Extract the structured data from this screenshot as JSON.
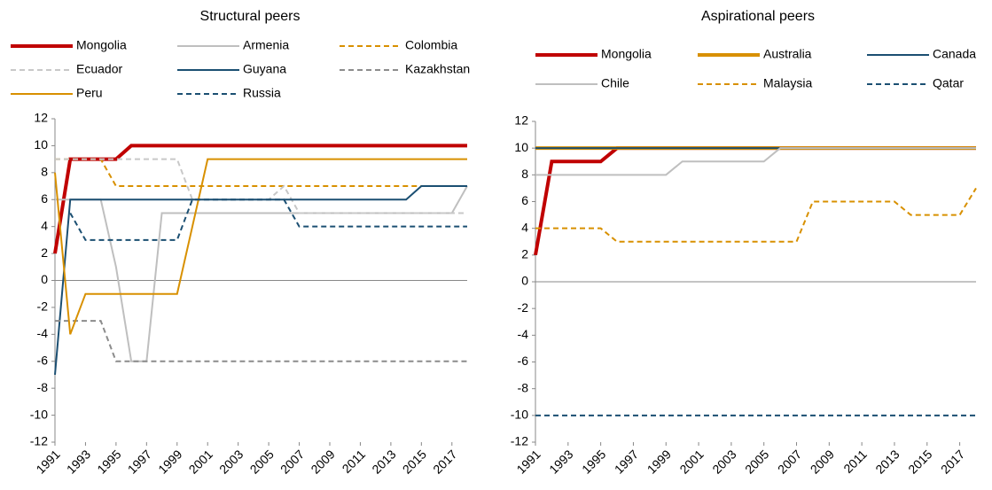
{
  "chart_data": [
    {
      "type": "line",
      "title": "Structural peers",
      "x": [
        1991,
        1992,
        1993,
        1994,
        1995,
        1996,
        1997,
        1998,
        1999,
        2000,
        2001,
        2002,
        2003,
        2004,
        2005,
        2006,
        2007,
        2008,
        2009,
        2010,
        2011,
        2012,
        2013,
        2014,
        2015,
        2016,
        2017,
        2018
      ],
      "xlim": [
        1991,
        2018
      ],
      "xticks": [
        1991,
        1993,
        1995,
        1997,
        1999,
        2001,
        2003,
        2005,
        2007,
        2009,
        2011,
        2013,
        2015,
        2017
      ],
      "ylim": [
        -12,
        12
      ],
      "yticks": [
        -12,
        -10,
        -8,
        -6,
        -4,
        -2,
        0,
        2,
        4,
        6,
        8,
        10,
        12
      ],
      "series": [
        {
          "name": "Mongolia",
          "color": "#c00000",
          "dashed": false,
          "width": 4,
          "values": [
            2,
            9,
            9,
            9,
            9,
            10,
            10,
            10,
            10,
            10,
            10,
            10,
            10,
            10,
            10,
            10,
            10,
            10,
            10,
            10,
            10,
            10,
            10,
            10,
            10,
            10,
            10,
            10
          ]
        },
        {
          "name": "Armenia",
          "color": "#bfbfbf",
          "dashed": false,
          "width": 2,
          "values": [
            6,
            6,
            6,
            6,
            1,
            -6,
            -6,
            5,
            5,
            5,
            5,
            5,
            5,
            5,
            5,
            5,
            5,
            5,
            5,
            5,
            5,
            5,
            5,
            5,
            5,
            5,
            5,
            7
          ]
        },
        {
          "name": "Colombia",
          "color": "#d89000",
          "dashed": true,
          "width": 2,
          "values": [
            9,
            9,
            9,
            9,
            7,
            7,
            7,
            7,
            7,
            7,
            7,
            7,
            7,
            7,
            7,
            7,
            7,
            7,
            7,
            7,
            7,
            7,
            7,
            7,
            7,
            7,
            7,
            7
          ]
        },
        {
          "name": "Ecuador",
          "color": "#c8c8c8",
          "dashed": true,
          "width": 2,
          "values": [
            9,
            9,
            9,
            9,
            9,
            9,
            9,
            9,
            9,
            6,
            6,
            6,
            6,
            6,
            6,
            7,
            5,
            5,
            5,
            5,
            5,
            5,
            5,
            5,
            5,
            5,
            5,
            5
          ]
        },
        {
          "name": "Guyana",
          "color": "#1b4f72",
          "dashed": false,
          "width": 2,
          "values": [
            -7,
            6,
            6,
            6,
            6,
            6,
            6,
            6,
            6,
            6,
            6,
            6,
            6,
            6,
            6,
            6,
            6,
            6,
            6,
            6,
            6,
            6,
            6,
            6,
            7,
            7,
            7,
            7
          ]
        },
        {
          "name": "Kazakhstan",
          "color": "#8c8c8c",
          "dashed": true,
          "width": 2,
          "values": [
            -3,
            -3,
            -3,
            -3,
            -6,
            -6,
            -6,
            -6,
            -6,
            -6,
            -6,
            -6,
            -6,
            -6,
            -6,
            -6,
            -6,
            -6,
            -6,
            -6,
            -6,
            -6,
            -6,
            -6,
            -6,
            -6,
            -6,
            -6
          ]
        },
        {
          "name": "Peru",
          "color": "#d89000",
          "dashed": false,
          "width": 2,
          "values": [
            8,
            -4,
            -1,
            -1,
            -1,
            -1,
            -1,
            -1,
            -1,
            4,
            9,
            9,
            9,
            9,
            9,
            9,
            9,
            9,
            9,
            9,
            9,
            9,
            9,
            9,
            9,
            9,
            9,
            9
          ]
        },
        {
          "name": "Russia",
          "color": "#1b4f72",
          "dashed": true,
          "width": 2,
          "values": [
            null,
            5,
            3,
            3,
            3,
            3,
            3,
            3,
            3,
            6,
            6,
            6,
            6,
            6,
            6,
            6,
            4,
            4,
            4,
            4,
            4,
            4,
            4,
            4,
            4,
            4,
            4,
            4
          ]
        }
      ]
    },
    {
      "type": "line",
      "title": "Aspirational peers",
      "x": [
        1991,
        1992,
        1993,
        1994,
        1995,
        1996,
        1997,
        1998,
        1999,
        2000,
        2001,
        2002,
        2003,
        2004,
        2005,
        2006,
        2007,
        2008,
        2009,
        2010,
        2011,
        2012,
        2013,
        2014,
        2015,
        2016,
        2017,
        2018
      ],
      "xlim": [
        1991,
        2018
      ],
      "xticks": [
        1991,
        1993,
        1995,
        1997,
        1999,
        2001,
        2003,
        2005,
        2007,
        2009,
        2011,
        2013,
        2015,
        2017
      ],
      "ylim": [
        -12,
        12
      ],
      "yticks": [
        -12,
        -10,
        -8,
        -6,
        -4,
        -2,
        0,
        2,
        4,
        6,
        8,
        10,
        12
      ],
      "series": [
        {
          "name": "Mongolia",
          "color": "#c00000",
          "dashed": false,
          "width": 4,
          "values": [
            2,
            9,
            9,
            9,
            9,
            10,
            10,
            10,
            10,
            10,
            10,
            10,
            10,
            10,
            10,
            10,
            10,
            10,
            10,
            10,
            10,
            10,
            10,
            10,
            10,
            10,
            10,
            10
          ]
        },
        {
          "name": "Australia",
          "color": "#d89000",
          "dashed": false,
          "width": 4,
          "values": [
            10,
            10,
            10,
            10,
            10,
            10,
            10,
            10,
            10,
            10,
            10,
            10,
            10,
            10,
            10,
            10,
            10,
            10,
            10,
            10,
            10,
            10,
            10,
            10,
            10,
            10,
            10,
            10
          ]
        },
        {
          "name": "Canada",
          "color": "#1b4f72",
          "dashed": false,
          "width": 2,
          "values": [
            10,
            10,
            10,
            10,
            10,
            10,
            10,
            10,
            10,
            10,
            10,
            10,
            10,
            10,
            10,
            10,
            10,
            10,
            10,
            10,
            10,
            10,
            10,
            10,
            10,
            10,
            10,
            10
          ]
        },
        {
          "name": "Chile",
          "color": "#bfbfbf",
          "dashed": false,
          "width": 2,
          "values": [
            8,
            8,
            8,
            8,
            8,
            8,
            8,
            8,
            8,
            9,
            9,
            9,
            9,
            9,
            9,
            10,
            10,
            10,
            10,
            10,
            10,
            10,
            10,
            10,
            10,
            10,
            10,
            10
          ]
        },
        {
          "name": "Malaysia",
          "color": "#d89000",
          "dashed": true,
          "width": 2,
          "values": [
            4,
            4,
            4,
            4,
            4,
            3,
            3,
            3,
            3,
            3,
            3,
            3,
            3,
            3,
            3,
            3,
            3,
            6,
            6,
            6,
            6,
            6,
            6,
            5,
            5,
            5,
            5,
            7
          ]
        },
        {
          "name": "Qatar",
          "color": "#1b4f72",
          "dashed": true,
          "width": 2,
          "values": [
            -10,
            -10,
            -10,
            -10,
            -10,
            -10,
            -10,
            -10,
            -10,
            -10,
            -10,
            -10,
            -10,
            -10,
            -10,
            -10,
            -10,
            -10,
            -10,
            -10,
            -10,
            -10,
            -10,
            -10,
            -10,
            -10,
            -10,
            -10
          ]
        }
      ]
    }
  ]
}
